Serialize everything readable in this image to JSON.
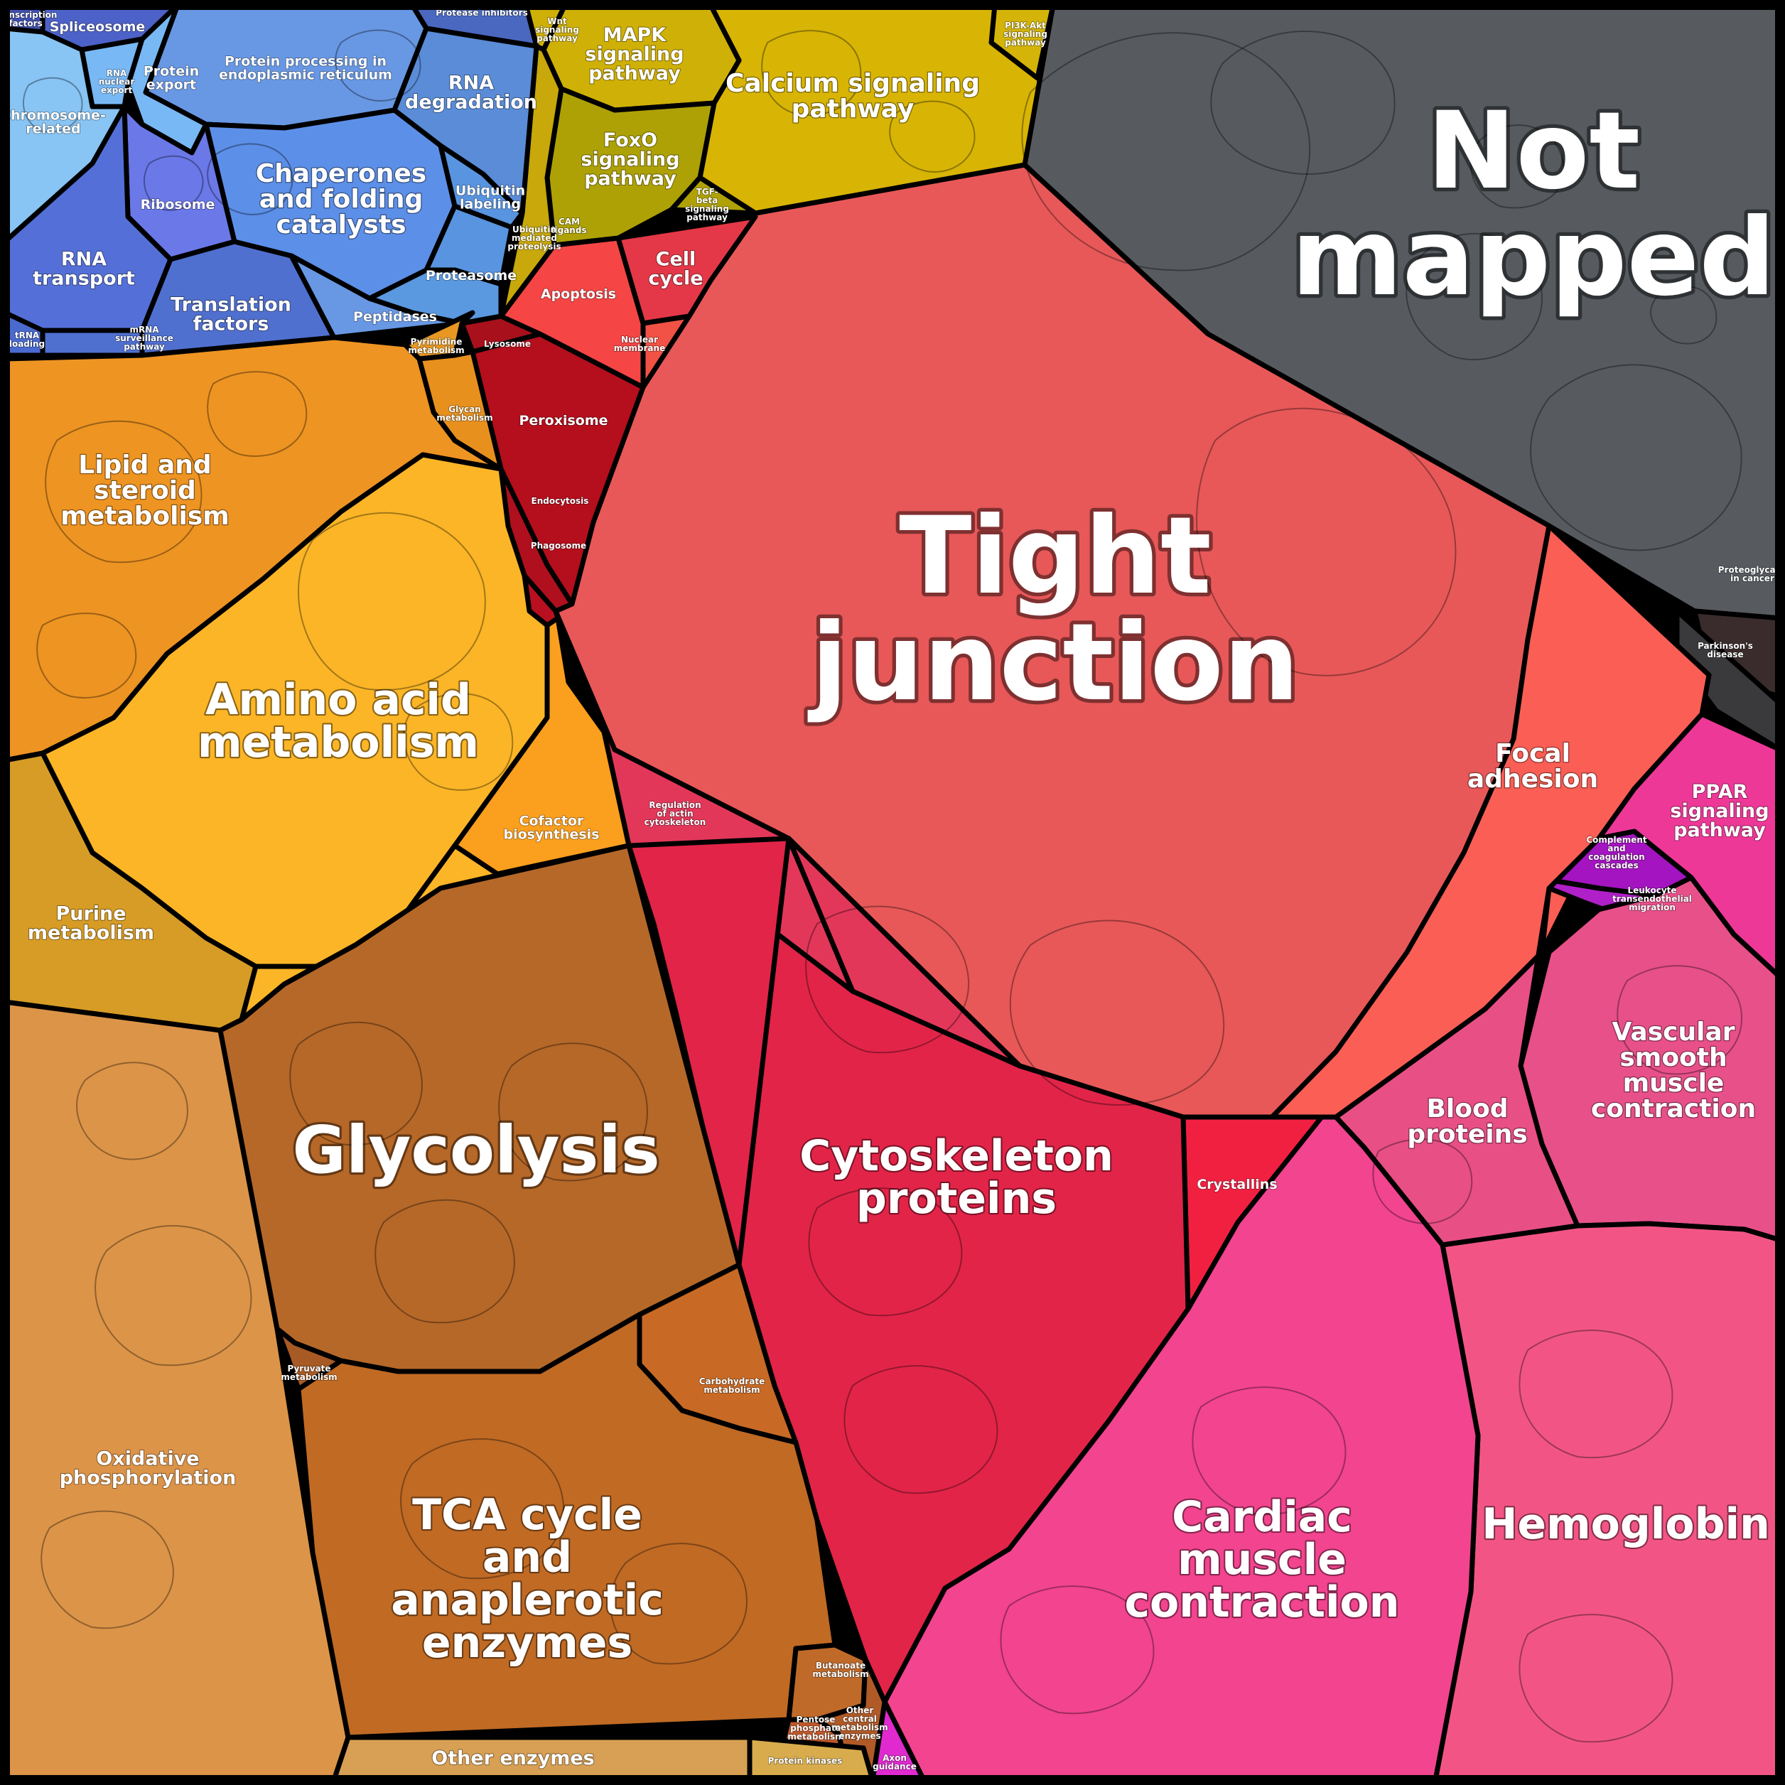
{
  "cells": [
    {
      "key": "tight",
      "color": "#e85858",
      "lines": [
        "Tight",
        "junction"
      ],
      "size": "huge"
    },
    {
      "key": "notmapped",
      "color": "#575b60",
      "lines": [
        "Not",
        "mapped"
      ],
      "size": "huge"
    },
    {
      "key": "glyco",
      "color": "#b66828",
      "lines": [
        "Glycolysis"
      ],
      "size": "xl"
    },
    {
      "key": "cyto",
      "color": "#e22448",
      "lines": [
        "Cytoskeleton",
        "proteins"
      ],
      "size": "lg"
    },
    {
      "key": "cardiac",
      "color": "#f2448f",
      "lines": [
        "Cardiac",
        "muscle",
        "contraction"
      ],
      "size": "lg"
    },
    {
      "key": "hemo",
      "color": "#f25585",
      "lines": [
        "Hemoglobin"
      ],
      "size": "lg"
    },
    {
      "key": "tca",
      "color": "#c06a24",
      "lines": [
        "TCA cycle",
        "and",
        "anaplerotic",
        "enzymes"
      ],
      "size": "lg"
    },
    {
      "key": "amino",
      "color": "#fbb526",
      "lines": [
        "Amino acid",
        "metabolism"
      ],
      "size": "lg"
    },
    {
      "key": "lipid",
      "color": "#ee9422",
      "lines": [
        "Lipid and",
        "steroid",
        "metabolism"
      ],
      "size": "md"
    },
    {
      "key": "oxphos",
      "color": "#dc9448",
      "lines": [
        "Oxidative",
        "phosphorylation"
      ],
      "size": "sm"
    },
    {
      "key": "vascular",
      "color": "#e8508a",
      "lines": [
        "Vascular",
        "smooth",
        "muscle",
        "contraction"
      ],
      "size": "md"
    },
    {
      "key": "blood",
      "color": "#e84f85",
      "lines": [
        "Blood",
        "proteins"
      ],
      "size": "md"
    },
    {
      "key": "focal",
      "color": "#fa5e55",
      "lines": [
        "Focal",
        "adhesion"
      ],
      "size": "md"
    },
    {
      "key": "ppar",
      "color": "#ee3898",
      "lines": [
        "PPAR",
        "signaling",
        "pathway"
      ],
      "size": "sm"
    },
    {
      "key": "calcium",
      "color": "#d8b404",
      "lines": [
        "Calcium signaling",
        "pathway"
      ],
      "size": "md"
    },
    {
      "key": "mapk",
      "color": "#cfb006",
      "lines": [
        "MAPK",
        "signaling",
        "pathway"
      ],
      "size": "sm"
    },
    {
      "key": "foxo",
      "color": "#aea106",
      "lines": [
        "FoxO",
        "signaling",
        "pathway"
      ],
      "size": "sm"
    },
    {
      "key": "chaperones",
      "color": "#5c8fe8",
      "lines": [
        "Chaperones",
        "and folding",
        "catalysts"
      ],
      "size": "md"
    },
    {
      "key": "protproc",
      "color": "#6898e4",
      "lines": [
        "Protein processing in",
        "endoplasmic reticulum"
      ],
      "size": "xs"
    },
    {
      "key": "rnadeg",
      "color": "#5a8cd8",
      "lines": [
        "RNA",
        "degradation"
      ],
      "size": "sm"
    },
    {
      "key": "ribosome",
      "color": "#6b78e8",
      "lines": [
        "Ribosome"
      ],
      "size": "xs"
    },
    {
      "key": "rnatrans",
      "color": "#5470d8",
      "lines": [
        "RNA",
        "transport"
      ],
      "size": "sm"
    },
    {
      "key": "transl",
      "color": "#5070d0",
      "lines": [
        "Translation",
        "factors"
      ],
      "size": "sm"
    },
    {
      "key": "protexp",
      "color": "#78b8f4",
      "lines": [
        "Protein",
        "export"
      ],
      "size": "xs"
    },
    {
      "key": "spliceo",
      "color": "#4d62c8",
      "lines": [
        "Spliceosome"
      ],
      "size": "xs"
    },
    {
      "key": "chromo",
      "color": "#88c4f4",
      "lines": [
        "Chromosome-",
        "related"
      ],
      "size": "xs"
    },
    {
      "key": "proteasome",
      "color": "#5a98e0",
      "lines": [
        "Proteasome"
      ],
      "size": "xs"
    },
    {
      "key": "peptidases",
      "color": "#6898e4",
      "lines": [
        "Peptidases"
      ],
      "size": "xs"
    },
    {
      "key": "ubiq",
      "color": "#5894e0",
      "lines": [
        "Ubiquitin",
        "labeling"
      ],
      "size": "xs"
    },
    {
      "key": "apoptosis",
      "color": "#f54545",
      "lines": [
        "Apoptosis"
      ],
      "size": "xs"
    },
    {
      "key": "cellcycle",
      "color": "#e43848",
      "lines": [
        "Cell",
        "cycle"
      ],
      "size": "sm"
    },
    {
      "key": "nuclear",
      "color": "#f25245",
      "lines": [
        "Nuclear",
        "membrane"
      ],
      "size": "xxs"
    },
    {
      "key": "lysosome",
      "color": "#a8101c",
      "lines": [
        "Lysosome"
      ],
      "size": "xxs"
    },
    {
      "key": "peroxisome",
      "color": "#b50e1d",
      "lines": [
        "Peroxisome"
      ],
      "size": "xs"
    },
    {
      "key": "endocytosis",
      "color": "#b0101e",
      "lines": [
        "Endocytosis"
      ],
      "size": "xxs"
    },
    {
      "key": "phagosome",
      "color": "#b81020",
      "lines": [
        "Phagosome"
      ],
      "size": "xxs"
    },
    {
      "key": "regactin",
      "color": "#e3375a",
      "lines": [
        "Regulation",
        "of actin",
        "cytoskeleton"
      ],
      "size": "xxs"
    },
    {
      "key": "crystallins",
      "color": "#f22040",
      "lines": [
        "Crystallins"
      ],
      "size": "xs"
    },
    {
      "key": "purine",
      "color": "#d69c26",
      "lines": [
        "Purine",
        "metabolism"
      ],
      "size": "sm"
    },
    {
      "key": "cofactor",
      "color": "#fa9f1e",
      "lines": [
        "Cofactor",
        "biosynthesis"
      ],
      "size": "xs"
    },
    {
      "key": "otherenz",
      "color": "#d8a054",
      "lines": [
        "Other enzymes"
      ],
      "size": "sm"
    },
    {
      "key": "protkin",
      "color": "#d8ac4c",
      "lines": [
        "Protein kinases"
      ],
      "size": "xxs"
    },
    {
      "key": "carbo",
      "color": "#c86a25",
      "lines": [
        "Carbohydrate",
        "metabolism"
      ],
      "size": "xxs"
    },
    {
      "key": "buta",
      "color": "#c06a2a",
      "lines": [
        "Butanoate",
        "metabolism"
      ],
      "size": "xxs"
    },
    {
      "key": "complement",
      "color": "#a414c0",
      "lines": [
        "Complement",
        "and",
        "coagulation",
        "cascades"
      ],
      "size": "xxs"
    },
    {
      "key": "parkinson",
      "color": "#3a3a3c",
      "lines": [
        "Parkinson's",
        "disease"
      ],
      "size": "xxs"
    },
    {
      "key": "proteoglycans",
      "color": "#3a2c2c",
      "lines": [
        "Proteoglycans",
        "in cancer"
      ],
      "size": "xxs"
    },
    {
      "key": "axon",
      "color": "#e02ad0",
      "lines": [
        "Axon",
        "guidance"
      ],
      "size": "xxs"
    },
    {
      "key": "glycan",
      "color": "#e8901e",
      "lines": [
        "Glycan",
        "metabolism"
      ],
      "size": "xxs"
    },
    {
      "key": "pyruvate",
      "color": "#a85a24",
      "lines": [
        "Pyruvate",
        "metabolism"
      ],
      "size": "xxs"
    },
    {
      "key": "pentose",
      "color": "#c0582a",
      "lines": [
        "Pentose",
        "phosphate",
        "metabolism"
      ],
      "size": "xxs"
    },
    {
      "key": "tgfb",
      "color": "#b0a206",
      "lines": [
        "TGF-",
        "beta",
        "signaling",
        "pathway"
      ],
      "size": "xxs"
    },
    {
      "key": "pi3k",
      "color": "#d4b408",
      "lines": [
        "PI3K-Akt",
        "signaling",
        "pathway"
      ],
      "size": "xxs"
    },
    {
      "key": "proteaseinh",
      "color": "#4a68c0",
      "lines": [
        "Protease inhibitors"
      ],
      "size": "xxs"
    },
    {
      "key": "trna",
      "color": "#4a6ad0",
      "lines": [
        "tRNA",
        "loading"
      ],
      "size": "xxs"
    },
    {
      "key": "mrna",
      "color": "#5070d0",
      "lines": [
        "mRNA",
        "surveillance",
        "pathway"
      ],
      "size": "xxs"
    },
    {
      "key": "camligand",
      "color": "#c8a80a",
      "lines": [
        "CAM",
        "ligands"
      ],
      "size": "xxs"
    },
    {
      "key": "pyrimidine",
      "color": "#e89822",
      "lines": [
        "Pyrimidine",
        "metabolism"
      ],
      "size": "xxs"
    },
    {
      "key": "ubiqprot",
      "color": "#5894e0",
      "lines": [
        "Ubiquitin",
        "mediated",
        "proteolysis"
      ],
      "size": "xxs"
    },
    {
      "key": "transfact",
      "color": "#4050b0",
      "lines": [
        "Transcription",
        "factors"
      ],
      "size": "xxs"
    },
    {
      "key": "wnt",
      "color": "#cfb006",
      "lines": [
        "Wnt",
        "signaling",
        "pathway"
      ],
      "size": "xxs"
    },
    {
      "key": "rnaexport",
      "color": "#78b8f4",
      "lines": [
        "RNA",
        "nuclear",
        "export"
      ],
      "size": "xxs"
    },
    {
      "key": "leukocyte",
      "color": "#b020c8",
      "lines": [
        "Leukocyte",
        "transendothelial",
        "migration"
      ],
      "size": "xxs"
    },
    {
      "key": "othercentral",
      "color": "#b05a28",
      "lines": [
        "Other",
        "central",
        "metabolism",
        "enzymes"
      ],
      "size": "xxs"
    }
  ]
}
